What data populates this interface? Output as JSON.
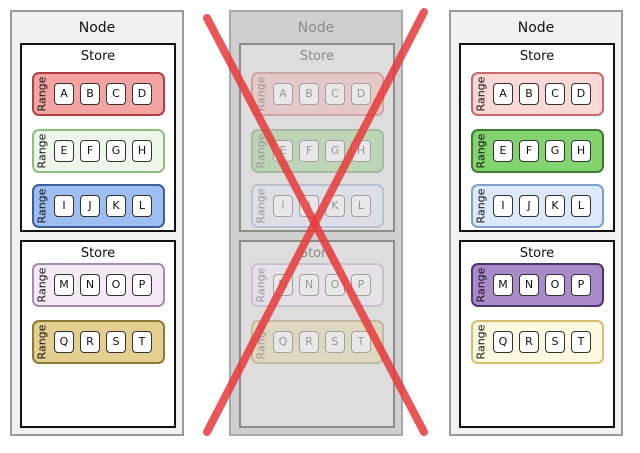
{
  "nodes": [
    {
      "title": "Node",
      "faded": false,
      "stores": [
        {
          "title": "Store",
          "ranges": [
            {
              "label": "Range",
              "fill": "#f4a3a3",
              "border": "#b04040",
              "keys": [
                "A",
                "B",
                "C",
                "D"
              ]
            },
            {
              "label": "Range",
              "fill": "#edf7e9",
              "border": "#8fbf7d",
              "keys": [
                "E",
                "F",
                "G",
                "H"
              ]
            },
            {
              "label": "Range",
              "fill": "#9ebef1",
              "border": "#3a5f9c",
              "keys": [
                "I",
                "J",
                "K",
                "L"
              ]
            }
          ]
        },
        {
          "title": "Store",
          "ranges": [
            {
              "label": "Range",
              "fill": "#f6eaf9",
              "border": "#a987b6",
              "keys": [
                "M",
                "N",
                "O",
                "P"
              ]
            },
            {
              "label": "Range",
              "fill": "#e3cf8f",
              "border": "#8f7a33",
              "keys": [
                "Q",
                "R",
                "S",
                "T"
              ]
            }
          ]
        }
      ]
    },
    {
      "title": "Node",
      "faded": true,
      "stores": [
        {
          "title": "Store",
          "ranges": [
            {
              "label": "Range",
              "fill": "#f4a3a3",
              "border": "#b04040",
              "keys": [
                "A",
                "B",
                "C",
                "D"
              ]
            },
            {
              "label": "Range",
              "fill": "#83c96f",
              "border": "#3f7c32",
              "keys": [
                "E",
                "F",
                "G",
                "H"
              ]
            },
            {
              "label": "Range",
              "fill": "#dce8f7",
              "border": "#6f8fbf",
              "keys": [
                "I",
                "J",
                "K",
                "L"
              ]
            }
          ]
        },
        {
          "title": "Store",
          "ranges": [
            {
              "label": "Range",
              "fill": "#f6eaf9",
              "border": "#a987b6",
              "keys": [
                "M",
                "N",
                "O",
                "P"
              ]
            },
            {
              "label": "Range",
              "fill": "#e3cf8f",
              "border": "#8f7a33",
              "keys": [
                "Q",
                "R",
                "S",
                "T"
              ]
            }
          ]
        }
      ]
    },
    {
      "title": "Node",
      "faded": false,
      "stores": [
        {
          "title": "Store",
          "ranges": [
            {
              "label": "Range",
              "fill": "#fbd8d8",
              "border": "#c96a6a",
              "keys": [
                "A",
                "B",
                "C",
                "D"
              ]
            },
            {
              "label": "Range",
              "fill": "#83d46f",
              "border": "#3f7c32",
              "keys": [
                "E",
                "F",
                "G",
                "H"
              ]
            },
            {
              "label": "Range",
              "fill": "#dce9f9",
              "border": "#7fa0cf",
              "keys": [
                "I",
                "J",
                "K",
                "L"
              ]
            }
          ]
        },
        {
          "title": "Store",
          "ranges": [
            {
              "label": "Range",
              "fill": "#a98bcc",
              "border": "#4d3670",
              "keys": [
                "M",
                "N",
                "O",
                "P"
              ]
            },
            {
              "label": "Range",
              "fill": "#fdf8e0",
              "border": "#d6bf6b",
              "keys": [
                "Q",
                "R",
                "S",
                "T"
              ]
            }
          ]
        }
      ]
    }
  ],
  "cross_color": "#e83a3a"
}
